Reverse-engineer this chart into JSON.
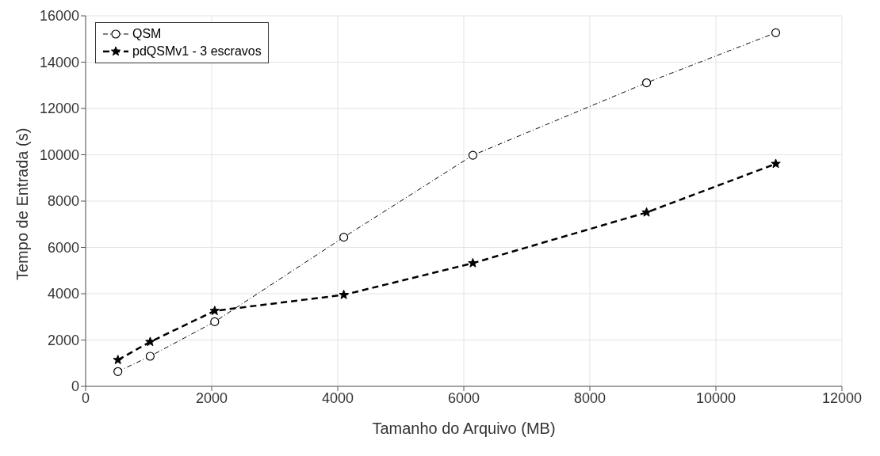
{
  "chart_data": {
    "type": "line",
    "xlabel": "Tamanho do Arquivo (MB)",
    "ylabel": "Tempo de Entrada (s)",
    "x": [
      512,
      1024,
      2048,
      4096,
      6144,
      8900,
      10950
    ],
    "series": [
      {
        "name": "QSM",
        "color": "#000000",
        "marker": "circle",
        "line_style": "dotted",
        "values": [
          640,
          1300,
          2790,
          6440,
          9980,
          13110,
          15270
        ]
      },
      {
        "name": "pdQSMv1 - 3 escravos",
        "color": "#000000",
        "marker": "star",
        "line_style": "dashed",
        "values": [
          1140,
          1920,
          3260,
          3950,
          5320,
          7510,
          9610
        ]
      }
    ],
    "xlim": [
      0,
      12000
    ],
    "xticks": [
      0,
      2000,
      4000,
      6000,
      8000,
      10000,
      12000
    ],
    "ylim": [
      0,
      16000
    ],
    "yticks": [
      0,
      2000,
      4000,
      6000,
      8000,
      10000,
      12000,
      14000,
      16000
    ],
    "grid": true,
    "legend": "top left"
  }
}
